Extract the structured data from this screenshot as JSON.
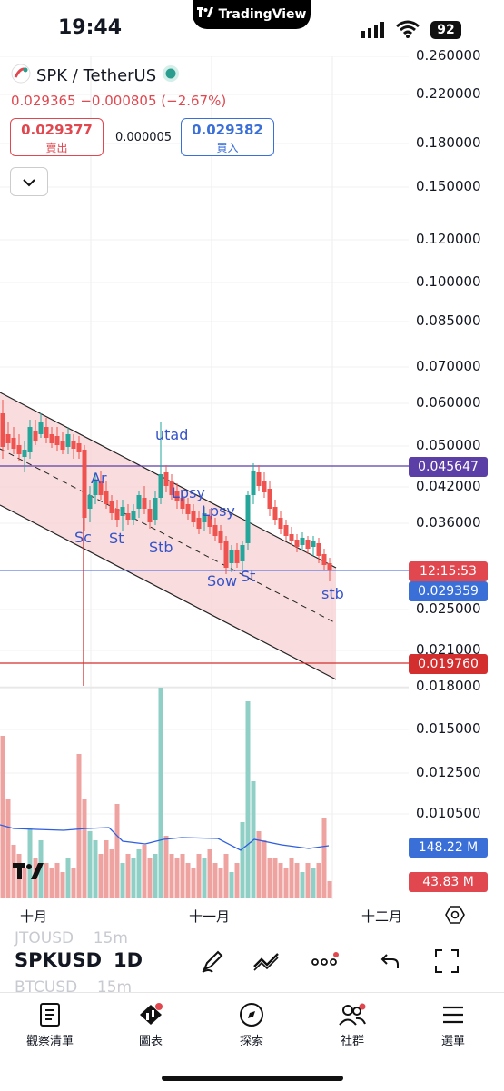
{
  "status_bar": {
    "time": "19:44",
    "app_name": "TradingView",
    "battery": "92"
  },
  "header": {
    "symbol": "SPK / TetherUS",
    "last_price": "0.029365",
    "change": "−0.000805",
    "change_pct": "(−2.67%)",
    "sell": {
      "price": "0.029377",
      "label": "賣出"
    },
    "spread": "0.000005",
    "buy": {
      "price": "0.029382",
      "label": "買入"
    }
  },
  "price_axis": [
    "0.260000",
    "0.220000",
    "0.180000",
    "0.150000",
    "0.120000",
    "0.100000",
    "0.085000",
    "0.070000",
    "0.060000",
    "0.050000",
    "0.042000",
    "0.036000",
    "0.025000",
    "0.021000",
    "0.018000",
    "0.015000",
    "0.012500",
    "0.010500"
  ],
  "price_tags": {
    "resistance": "0.045647",
    "countdown": "12:15:53",
    "current": "0.029359",
    "support": "0.019760",
    "volume_ma": "148.22 M",
    "volume": "43.83 M"
  },
  "colors": {
    "up": "#26a69a",
    "down": "#ef5350",
    "channel_fill": "#f7d3d4",
    "resistance_line": "#5b3fa6",
    "support_line": "#d32f2f",
    "current_line": "#3b5bdb",
    "volume_ma_line": "#2f5fe0"
  },
  "annotations": [
    "utad",
    "Ar",
    "Lpsy",
    "Lpsy",
    "Sc",
    "St",
    "Stb",
    "Sow",
    "St",
    "stb"
  ],
  "time_axis": [
    "十月",
    "十一月",
    "十二月"
  ],
  "toolbar": {
    "symbol": "SPKUSD",
    "interval": "1D",
    "ghost_1": "JTOUSD",
    "ghost_1_tf": "15m",
    "ghost_2": "BTCUSD",
    "ghost_2_tf": "15m"
  },
  "nav": [
    {
      "label": "觀察清單",
      "icon": "watchlist-icon"
    },
    {
      "label": "圖表",
      "icon": "chart-icon"
    },
    {
      "label": "探索",
      "icon": "compass-icon"
    },
    {
      "label": "社群",
      "icon": "community-icon"
    },
    {
      "label": "選單",
      "icon": "menu-icon"
    }
  ]
}
